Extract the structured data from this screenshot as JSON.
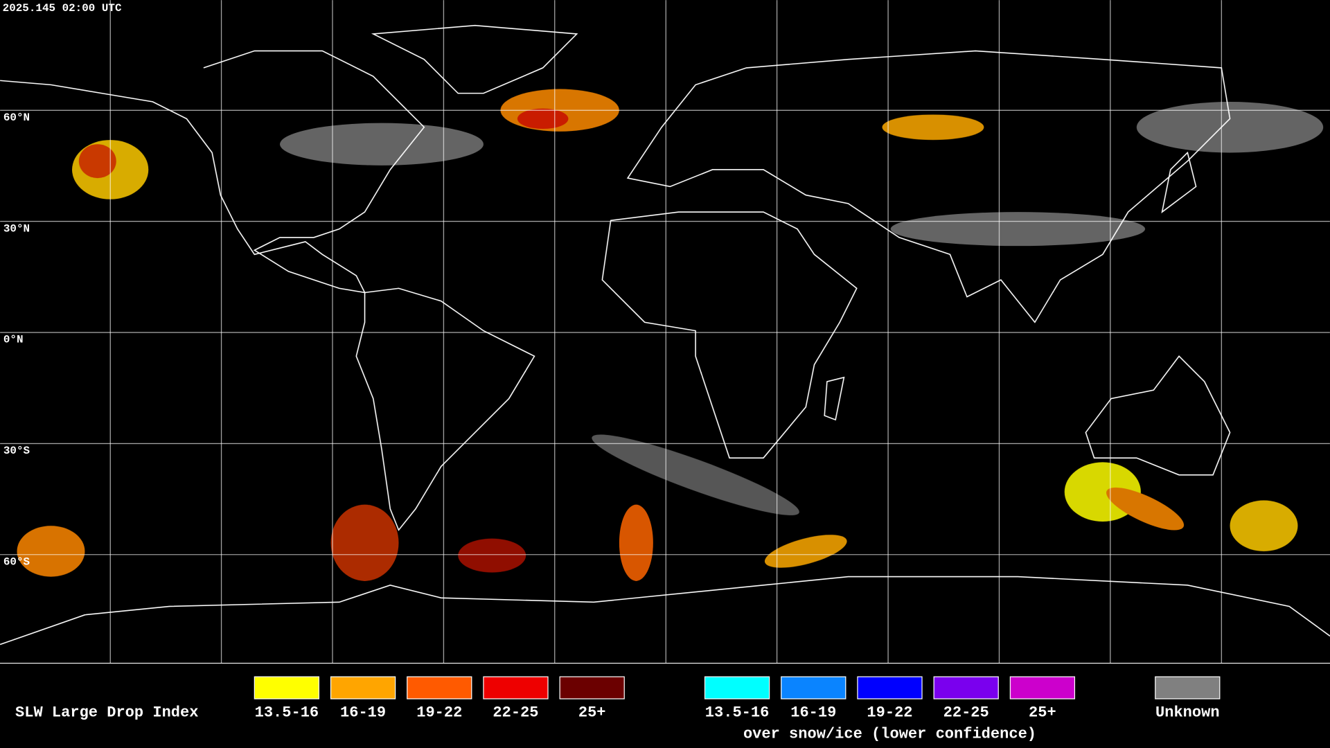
{
  "timestamp": "2025.145 02:00 UTC",
  "grid_labels": [
    "60°N",
    "30°N",
    "0°N",
    "30°S",
    "60°S"
  ],
  "legend": {
    "title": "SLW Large Drop Index",
    "groups": [
      {
        "items": [
          {
            "label": "13.5-16",
            "color": "#ffff00"
          },
          {
            "label": "16-19",
            "color": "#ffa500"
          },
          {
            "label": "19-22",
            "color": "#ff5a00"
          },
          {
            "label": "22-25",
            "color": "#ee0000"
          },
          {
            "label": "25+",
            "color": "#6b0000"
          }
        ]
      },
      {
        "caption": "over snow/ice (lower confidence)",
        "items": [
          {
            "label": "13.5-16",
            "color": "#00ffff"
          },
          {
            "label": "16-19",
            "color": "#0a84ff"
          },
          {
            "label": "19-22",
            "color": "#0000ff"
          },
          {
            "label": "22-25",
            "color": "#7a00ee"
          },
          {
            "label": "25+",
            "color": "#cc00cc"
          }
        ]
      },
      {
        "items": [
          {
            "label": "Unknown",
            "color": "#808080"
          }
        ]
      }
    ]
  }
}
